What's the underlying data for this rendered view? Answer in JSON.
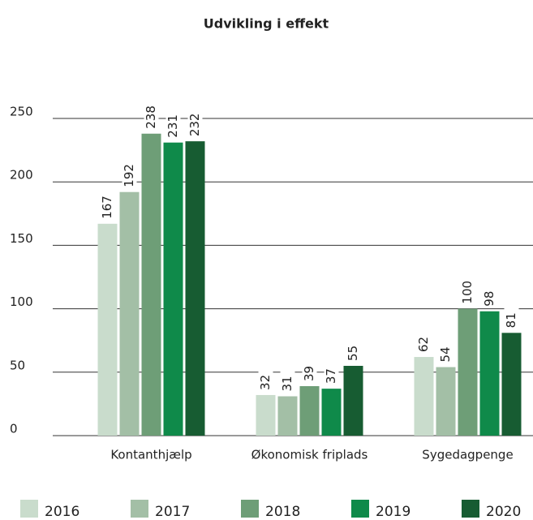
{
  "chart_data": {
    "type": "bar",
    "title": "Udvikling i effekt",
    "categories": [
      "Kontanthjælp",
      "Økonomisk friplads",
      "Sygedagpenge"
    ],
    "series": [
      {
        "name": "2016",
        "color": "#c9dccc",
        "values": [
          167,
          32,
          62
        ]
      },
      {
        "name": "2017",
        "color": "#a3bfa6",
        "values": [
          192,
          31,
          54
        ]
      },
      {
        "name": "2018",
        "color": "#6e9e77",
        "values": [
          238,
          39,
          100
        ]
      },
      {
        "name": "2019",
        "color": "#0f8a4a",
        "values": [
          231,
          37,
          98
        ]
      },
      {
        "name": "2020",
        "color": "#175c32",
        "values": [
          232,
          55,
          81
        ]
      }
    ],
    "ylim": [
      0,
      250
    ],
    "yticks": [
      0,
      50,
      100,
      150,
      200,
      250
    ],
    "grid": true,
    "legend": "bottom"
  }
}
